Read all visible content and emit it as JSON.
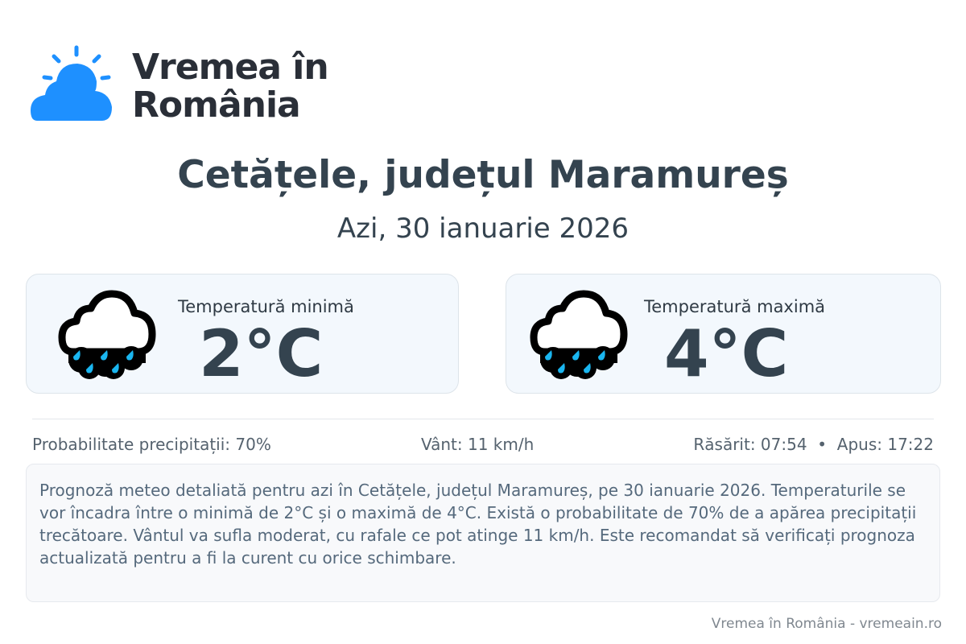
{
  "brand": {
    "name_line1": "Vremea în",
    "name_line2": "România",
    "logo_color": "#1e90ff"
  },
  "header": {
    "title": "Cetățele, județul Maramureș",
    "date": "Azi, 30 ianuarie 2026"
  },
  "cards": [
    {
      "label": "Temperatură minimă",
      "value": "2°C",
      "icon": "rain-cloud-icon"
    },
    {
      "label": "Temperatură maximă",
      "value": "4°C",
      "icon": "rain-cloud-icon"
    }
  ],
  "details": {
    "precipitation": "Probabilitate precipitații: 70%",
    "wind": "Vânt: 11 km/h",
    "sun": "Răsărit: 07:54  •  Apus: 17:22"
  },
  "description": "Prognoză meteo detaliată pentru azi în Cetățele, județul Maramureș, pe 30 ianuarie 2026. Temperaturile se vor încadra între o minimă de 2°C și o maximă de 4°C. Există o probabilitate de 70% de a apărea precipitații trecătoare. Vântul va sufla moderat, cu rafale ce pot atinge 11 km/h. Este recomandat să verificați prognoza actualizată pentru a fi la curent cu orice schimbare.",
  "footer": "Vremea în România - vremeain.ro"
}
